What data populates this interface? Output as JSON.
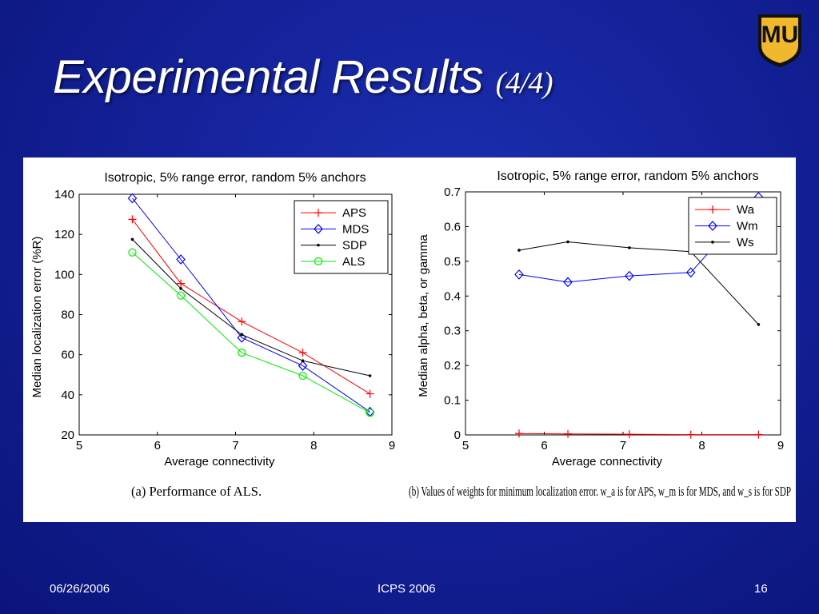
{
  "slide": {
    "title_main": "Experimental Results",
    "title_suffix": "(4/4)",
    "logo_text": "MU",
    "footer": {
      "date": "06/26/2006",
      "conference": "ICPS 2006",
      "page": "16"
    },
    "colors": {
      "background": "#14229a",
      "logo_gold": "#f1b82d",
      "logo_black": "#111111"
    }
  },
  "chart_data": [
    {
      "type": "line",
      "title": "Isotropic, 5% range error, random 5% anchors",
      "xlabel": "Average connectivity",
      "ylabel": "Median localization error (%R)",
      "caption": "(a)  Performance of ALS.",
      "xlim": [
        5,
        9
      ],
      "ylim": [
        20,
        140
      ],
      "xticks": [
        5,
        6,
        7,
        8,
        9
      ],
      "yticks": [
        20,
        40,
        60,
        80,
        100,
        120,
        140
      ],
      "grid": false,
      "legend_position": "top-right",
      "x": [
        5.68,
        6.3,
        7.08,
        7.86,
        8.72
      ],
      "series": [
        {
          "name": "APS",
          "color": "#ff0000",
          "marker": "plus",
          "values": [
            127.5,
            95.5,
            76.5,
            61,
            40.5
          ]
        },
        {
          "name": "MDS",
          "color": "#0000ff",
          "marker": "diamond",
          "values": [
            138,
            107.5,
            68.5,
            54.5,
            31.5
          ]
        },
        {
          "name": "SDP",
          "color": "#000000",
          "marker": "dot",
          "values": [
            117.5,
            93,
            70,
            57,
            49.5
          ]
        },
        {
          "name": "ALS",
          "color": "#00ee00",
          "marker": "circle",
          "values": [
            111,
            89.5,
            61,
            49.5,
            31
          ]
        }
      ]
    },
    {
      "type": "line",
      "title": "Isotropic, 5% range error, random 5% anchors",
      "xlabel": "Average connectivity",
      "ylabel": "Median alpha, beta, or gamma",
      "caption": "(b)  Values of weights for minimum localization error.  w_a  is for APS,  w_m  is for MDS, and  w_s  is for SDP",
      "xlim": [
        5,
        9
      ],
      "ylim": [
        0,
        0.7
      ],
      "xticks": [
        5,
        6,
        7,
        8,
        9
      ],
      "yticks": [
        0,
        0.1,
        0.2,
        0.3,
        0.4,
        0.5,
        0.6,
        0.7
      ],
      "grid": false,
      "legend_position": "top-right",
      "x": [
        5.68,
        6.3,
        7.08,
        7.86,
        8.72
      ],
      "series": [
        {
          "name": "Wa",
          "color": "#ff0000",
          "marker": "plus",
          "values": [
            0.004,
            0.003,
            0.002,
            0.001,
            0.001
          ]
        },
        {
          "name": "Wm",
          "color": "#0000ff",
          "marker": "diamond",
          "values": [
            0.462,
            0.44,
            0.458,
            0.468,
            0.685
          ]
        },
        {
          "name": "Ws",
          "color": "#000000",
          "marker": "dot",
          "values": [
            0.532,
            0.556,
            0.539,
            0.528,
            0.318
          ]
        }
      ]
    }
  ]
}
